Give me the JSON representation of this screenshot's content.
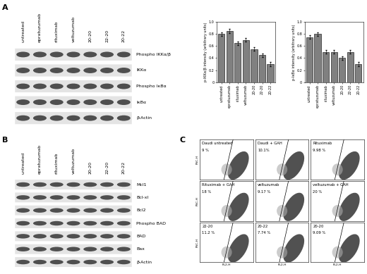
{
  "panel_labels": [
    "A",
    "B",
    "C"
  ],
  "lanes": [
    "untreated",
    "epratuzumab",
    "rituximab",
    "veltuzumab",
    "20-20",
    "22-20",
    "20-22"
  ],
  "blots": [
    {
      "panel": "A",
      "bands": [
        "Phospho IKKα/β",
        "IKKα",
        "Phospho IκBα",
        "IκBα",
        "β-Actin"
      ]
    },
    {
      "panel": "B",
      "bands": [
        "Mcl1",
        "Bcl-xl",
        "Bcl2",
        "Phospho BAD",
        "BAD",
        "Bax",
        "β-Actin"
      ]
    }
  ],
  "chart_data": [
    {
      "type": "bar",
      "y_label": "p-IKKα/β intensity (arbitrary units)",
      "categories": [
        "untreated",
        "epratuzumab",
        "rituximab",
        "veltuzumab",
        "20-20",
        "22-20",
        "20-22"
      ],
      "values": [
        0.8,
        0.85,
        0.65,
        0.7,
        0.55,
        0.45,
        0.3
      ],
      "errors": [
        0.03,
        0.03,
        0.03,
        0.03,
        0.03,
        0.03,
        0.03
      ],
      "color": "#808080",
      "ylim": [
        0,
        1.0
      ],
      "yticks": [
        0,
        0.2,
        0.4,
        0.6,
        0.8,
        1.0
      ]
    },
    {
      "type": "bar",
      "y_label": "p-IκBα intensity (arbitrary units)",
      "categories": [
        "untreated",
        "epratuzumab",
        "rituximab",
        "veltuzumab",
        "20-20",
        "22-20",
        "20-22"
      ],
      "values": [
        0.75,
        0.8,
        0.5,
        0.5,
        0.4,
        0.5,
        0.3
      ],
      "errors": [
        0.03,
        0.03,
        0.03,
        0.03,
        0.03,
        0.03,
        0.03
      ],
      "color": "#808080",
      "ylim": [
        0,
        1.0
      ],
      "yticks": [
        0,
        0.2,
        0.4,
        0.6,
        0.8,
        1.0
      ]
    }
  ],
  "flow": {
    "x_label": "FL2-H",
    "y_label": "FSC-H",
    "panels": [
      {
        "label": "Daudi untreated",
        "percent": "9 %"
      },
      {
        "label": "Daudi + GAH",
        "percent": "10.1%"
      },
      {
        "label": "Rituximab",
        "percent": "9.98 %"
      },
      {
        "label": "Rituximab + GAH",
        "percent": "18 %"
      },
      {
        "label": "veltuzumab",
        "percent": "9.17 %"
      },
      {
        "label": "veltuzumab + GAH",
        "percent": "20 %"
      },
      {
        "label": "22-20",
        "percent": "11.2 %"
      },
      {
        "label": "20-22",
        "percent": "7.74 %"
      },
      {
        "label": "20-20",
        "percent": "9.09 %"
      }
    ]
  }
}
